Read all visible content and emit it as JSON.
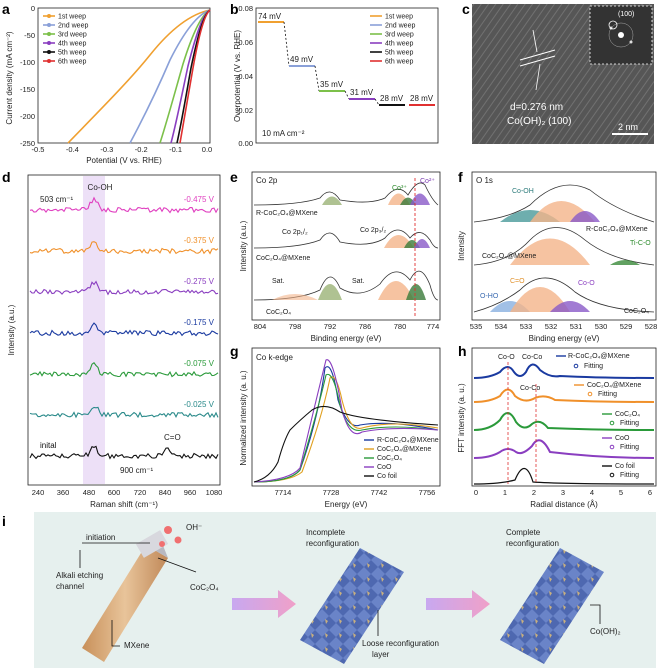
{
  "panels": {
    "a": "a",
    "b": "b",
    "c": "c",
    "d": "d",
    "e": "e",
    "f": "f",
    "g": "g",
    "h": "h",
    "i": "i"
  },
  "colors": {
    "c1": "#f0a030",
    "c2": "#8aa0d8",
    "c3": "#7cc04a",
    "c4": "#8a3ec0",
    "c5": "#111111",
    "c6": "#e03030"
  },
  "panel_a": {
    "xlabel": "Potential (V vs. RHE)",
    "ylabel": "Current density (mA cm⁻²)",
    "xticks": [
      "-0.5",
      "-0.4",
      "-0.3",
      "-0.2",
      "-0.1",
      "0.0"
    ],
    "yticks": [
      "0",
      "-50",
      "-100",
      "-150",
      "-200",
      "-250"
    ],
    "legend": [
      "1st weep",
      "2nd weep",
      "3rd weep",
      "4th weep",
      "5th weep",
      "6th weep"
    ]
  },
  "panel_b": {
    "ylabel": "Overpotential (V vs. RHE)",
    "note": "10 mA cm⁻²",
    "yticks": [
      "0.08",
      "0.06",
      "0.04",
      "0.02",
      "0.00"
    ],
    "labels": [
      "74 mV",
      "49 mV",
      "35 mV",
      "31 mV",
      "28 mV",
      "28 mV"
    ],
    "legend": [
      "1st weep",
      "2nd weep",
      "3rd weep",
      "4th weep",
      "5th weep",
      "6th weep"
    ]
  },
  "panel_c": {
    "spacing": "d=0.276 nm",
    "phase": "Co(OH)₂ (100)",
    "scale": "2 nm",
    "fft": "(100)"
  },
  "panel_d": {
    "xlabel": "Raman shift (cm⁻¹)",
    "ylabel": "Intensity (a.u.)",
    "xticks": [
      "240",
      "360",
      "480",
      "600",
      "720",
      "840",
      "960",
      "1080"
    ],
    "peak1": "Co-OH",
    "peak1_pos": "503 cm⁻¹",
    "peak2": "C=O",
    "peak2_pos": "900 cm⁻¹",
    "traces": [
      {
        "label": "-0.475 V",
        "color": "#e040c0"
      },
      {
        "label": "-0.375 V",
        "color": "#f0902a"
      },
      {
        "label": "-0.275 V",
        "color": "#8a3ec0"
      },
      {
        "label": "-0.175 V",
        "color": "#1a3aa0"
      },
      {
        "label": "-0.075 V",
        "color": "#2a9a3a"
      },
      {
        "label": "-0.025 V",
        "color": "#2a8a8a"
      },
      {
        "label": "inital",
        "color": "#111111"
      }
    ]
  },
  "panel_e": {
    "title": "Co 2p",
    "xlabel": "Binding energy (eV)",
    "ylabel": "Intensity (a.u.)",
    "xticks": [
      "804",
      "798",
      "792",
      "786",
      "780",
      "774"
    ],
    "co3": "Co³⁺",
    "co2": "Co²⁺",
    "s1": "R-CoC₂O₄@MXene",
    "s2": "CoC₂O₄@MXene",
    "s3": "CoC₂O₄",
    "p12": "Co 2p₁/₂",
    "p32": "Co 2p₃/₂",
    "sat": "Sat."
  },
  "panel_f": {
    "title": "O 1s",
    "xlabel": "Binding energy (eV)",
    "ylabel": "Intensity",
    "xticks": [
      "535",
      "534",
      "533",
      "532",
      "531",
      "530",
      "529",
      "528"
    ],
    "coh": "Co-OH",
    "tico": "Ti-C-O",
    "co": "C=O",
    "coo": "Co-O",
    "oho": "O-HO",
    "s1": "R-CoC₂O₄@MXene",
    "s2": "CoC₂O₄@MXene",
    "s3": "CoC₂O₄"
  },
  "panel_g": {
    "title": "Co k-edge",
    "xlabel": "Energy (eV)",
    "ylabel": "Normalized intensity (a. u.)",
    "xticks": [
      "7714",
      "7728",
      "7742",
      "7756"
    ],
    "legend": [
      "R-CoC₂O₄@MXene",
      "CoC₂O₄@MXene",
      "CoC₂O₄",
      "CoO",
      "Co foil"
    ]
  },
  "panel_h": {
    "xlabel": "Radial distance (Å)",
    "ylabel": "FFT intensity (a. u.)",
    "xticks": [
      "0",
      "1",
      "2",
      "3",
      "4",
      "5",
      "6"
    ],
    "coo": "Co-O",
    "coco": "Co-Co",
    "coco2": "Co-Co",
    "l1": "R-CoC₂O₄@MXene",
    "l2": "CoC₂O₄@MXene",
    "l3": "CoC₂O₄",
    "l4": "CoO",
    "l5": "Co foil",
    "fit": "Fitting"
  },
  "panel_i": {
    "initiation": "initiation",
    "oh": "OH⁻",
    "etch": "Alkali etching\nchannel",
    "coc2o4": "CoC₂O₄",
    "mxene": "MXene",
    "incomplete": "Incomplete\nreconfiguration",
    "loose": "Loose reconfiguration\nlayer",
    "complete": "Complete\nreconfiguration",
    "product": "Co(OH)₂"
  }
}
